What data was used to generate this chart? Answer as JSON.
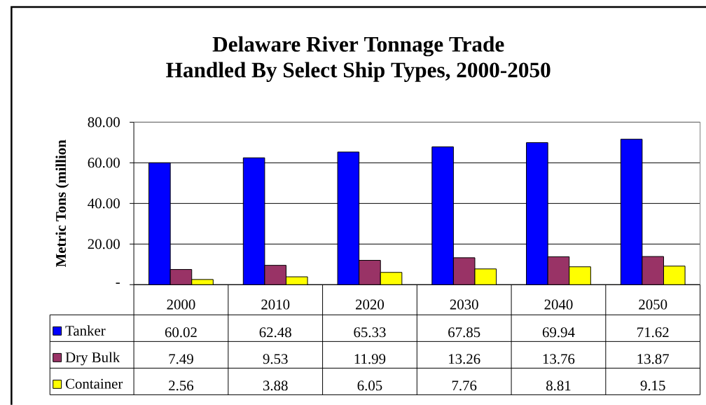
{
  "chart_data": {
    "type": "bar",
    "title": "Delaware River Tonnage Trade",
    "subtitle": "Handled By Select Ship Types, 2000-2050",
    "ylabel": "Metric Tons (million",
    "categories": [
      "2000",
      "2010",
      "2020",
      "2030",
      "2040",
      "2050"
    ],
    "series": [
      {
        "name": "Tanker",
        "color": "#0000ff",
        "values": [
          60.02,
          62.48,
          65.33,
          67.85,
          69.94,
          71.62
        ]
      },
      {
        "name": "Dry Bulk",
        "color": "#993366",
        "values": [
          7.49,
          9.53,
          11.99,
          13.26,
          13.76,
          13.87
        ]
      },
      {
        "name": "Container",
        "color": "#ffff00",
        "values": [
          2.56,
          3.88,
          6.05,
          7.76,
          8.81,
          9.15
        ]
      }
    ],
    "ylim": [
      0,
      80
    ],
    "yticks": [
      {
        "value": 0,
        "label": "-"
      },
      {
        "value": 20,
        "label": "20.00"
      },
      {
        "value": 40,
        "label": "40.00"
      },
      {
        "value": 60,
        "label": "60.00"
      },
      {
        "value": 80,
        "label": "80.00"
      }
    ],
    "grid": "y",
    "legend": "bottom",
    "data_labels": true
  }
}
